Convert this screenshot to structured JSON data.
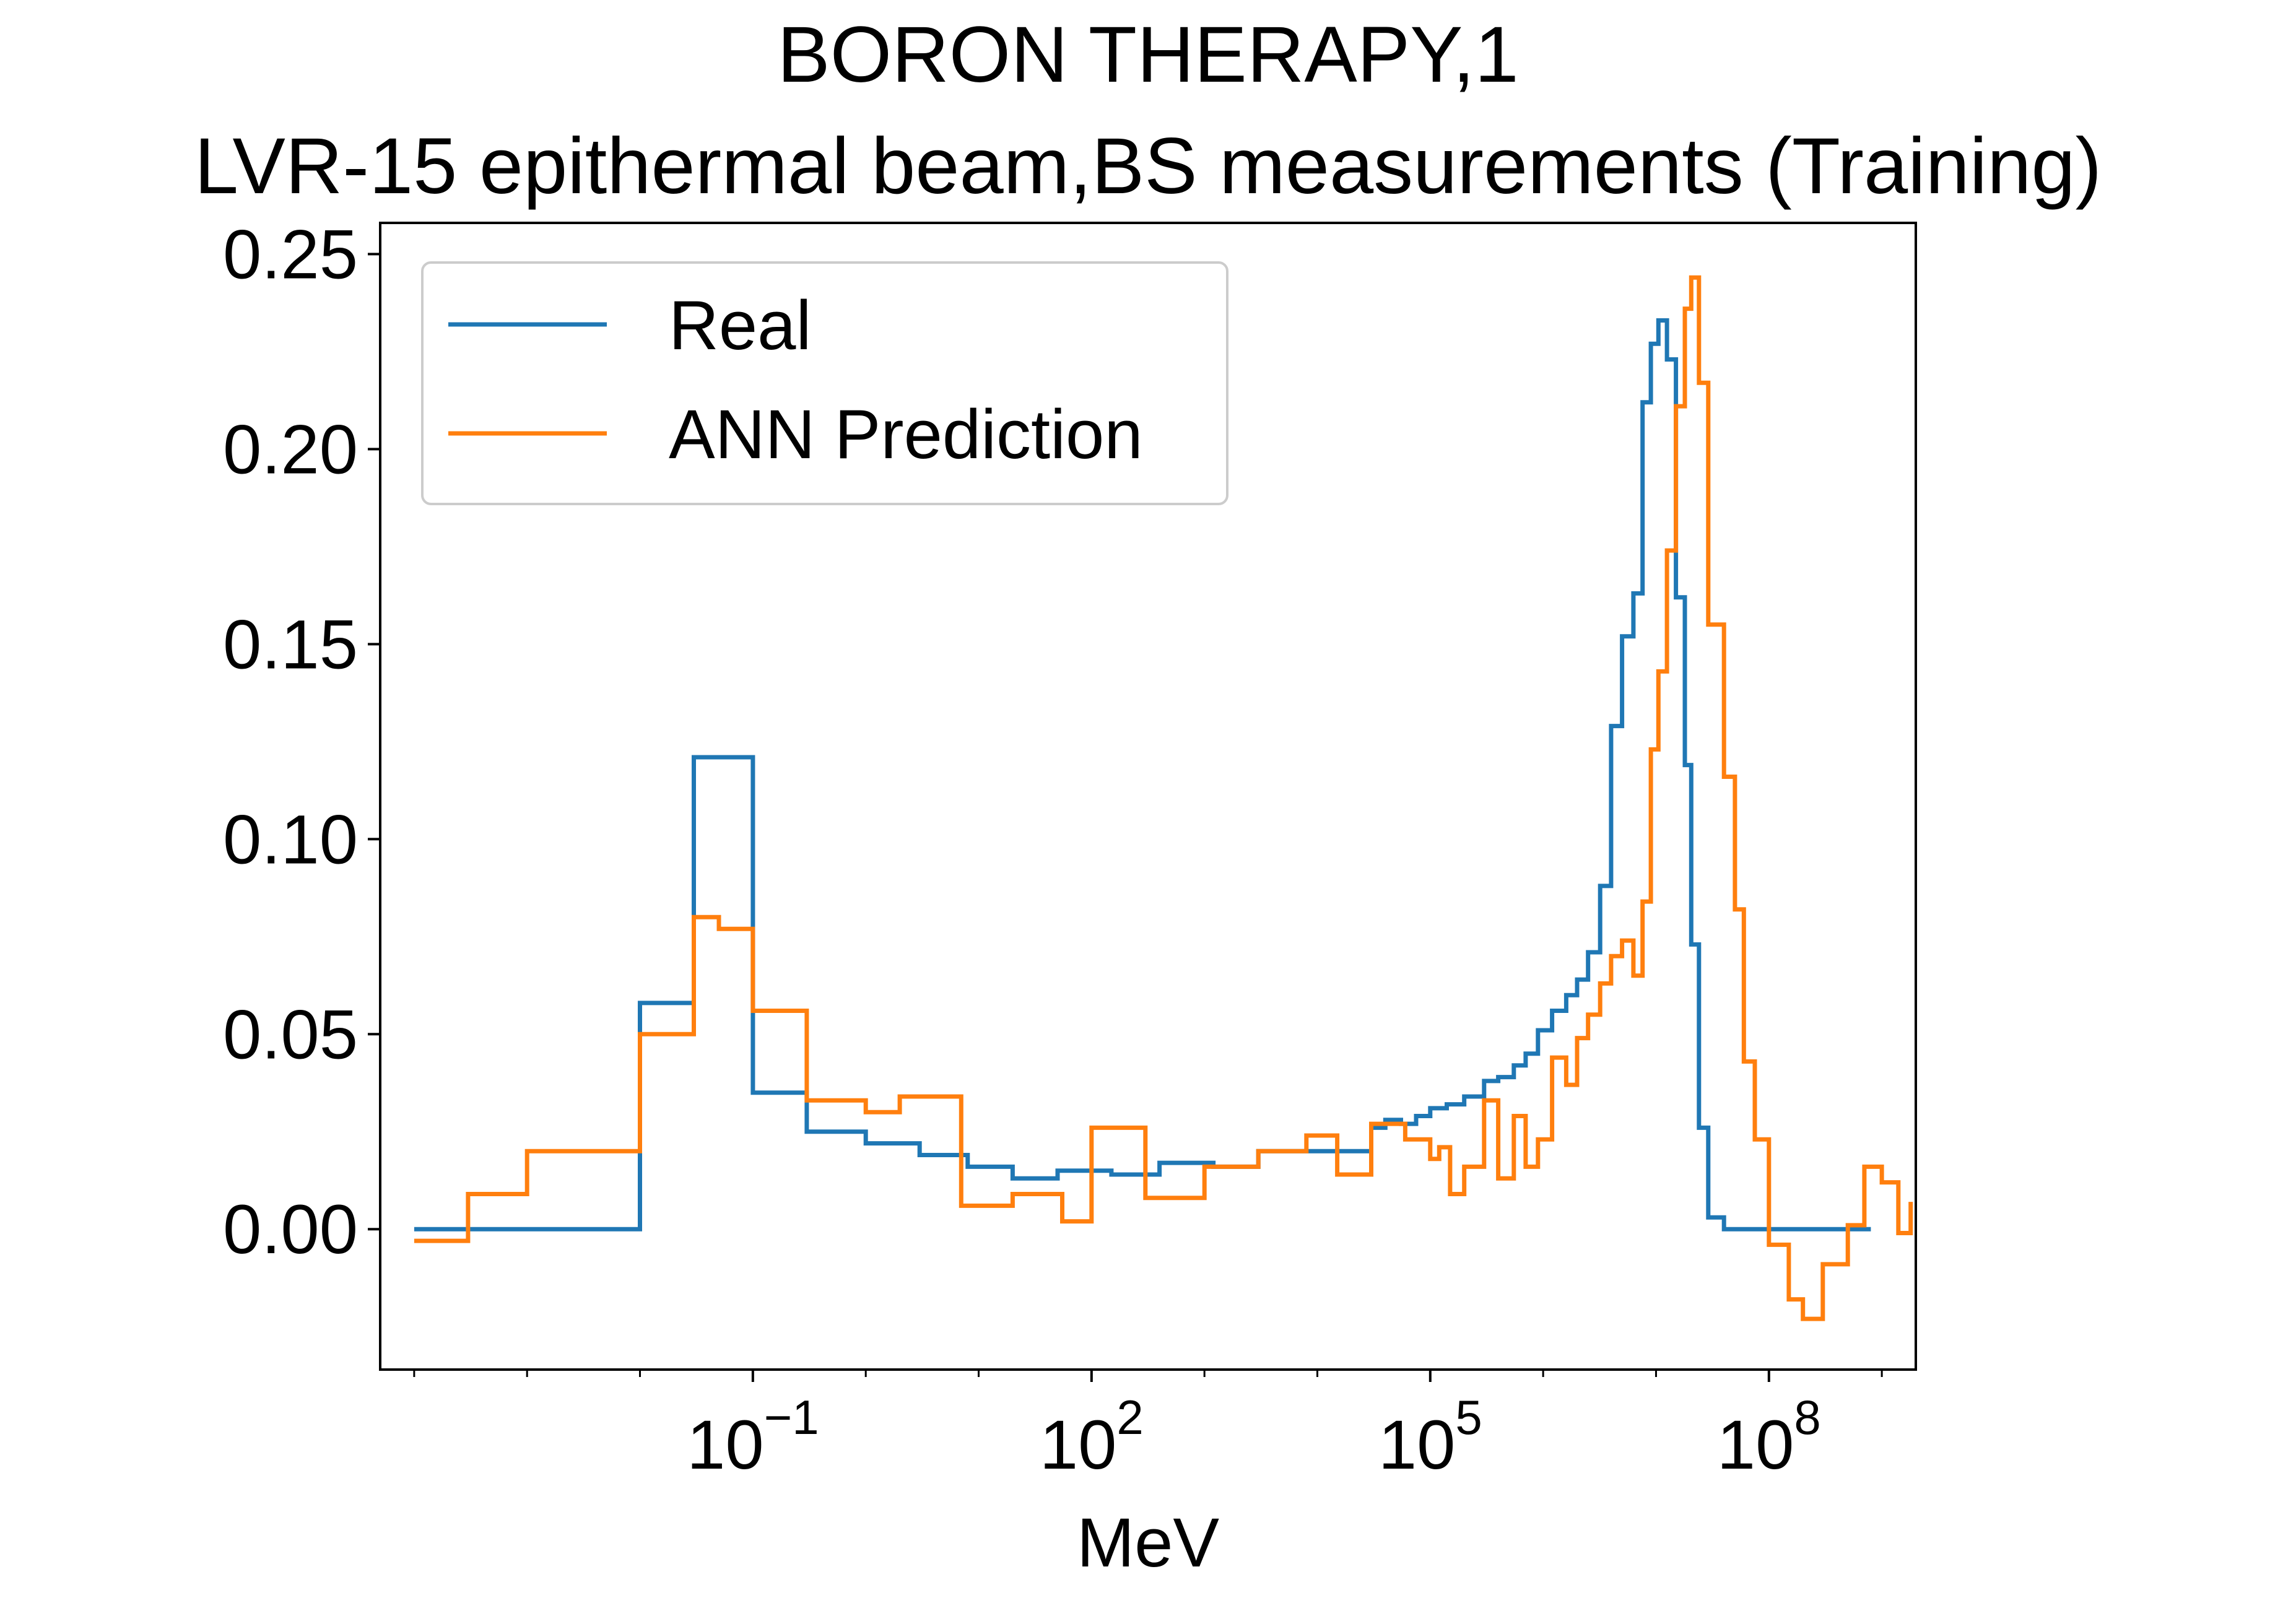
{
  "chart_data": {
    "type": "line",
    "title": [
      "BORON THERAPY,1",
      "LVR-15 epithermal beam,BS measurements (Training)"
    ],
    "xlabel": "MeV",
    "ylabel": "",
    "xscale": "log",
    "xlim": [
      5e-05,
      2000000000
    ],
    "ylim": [
      -0.036,
      0.258
    ],
    "grid": false,
    "legend_position": "top-left",
    "x_ticks": [
      {
        "value": 0.1,
        "base": "10",
        "exp": "−1"
      },
      {
        "value": 100,
        "base": "10",
        "exp": "2"
      },
      {
        "value": 100000,
        "base": "10",
        "exp": "5"
      },
      {
        "value": 100000000,
        "base": "10",
        "exp": "8"
      }
    ],
    "y_ticks": [
      {
        "value": 0.0,
        "label": "0.00"
      },
      {
        "value": 0.05,
        "label": "0.05"
      },
      {
        "value": 0.1,
        "label": "0.10"
      },
      {
        "value": 0.15,
        "label": "0.15"
      },
      {
        "value": 0.2,
        "label": "0.20"
      },
      {
        "value": 0.25,
        "label": "0.25"
      }
    ],
    "series": [
      {
        "name": "Real",
        "color": "#1f77b4",
        "step": "post",
        "points": [
          [
            0.0001,
            0.0
          ],
          [
            0.01,
            0.058
          ],
          [
            0.03,
            0.121
          ],
          [
            0.1,
            0.094
          ],
          [
            0.1,
            0.035
          ],
          [
            0.3,
            0.025
          ],
          [
            1,
            0.022
          ],
          [
            3,
            0.019
          ],
          [
            8,
            0.016
          ],
          [
            20,
            0.013
          ],
          [
            50,
            0.015
          ],
          [
            150,
            0.014
          ],
          [
            400,
            0.017
          ],
          [
            1200,
            0.016
          ],
          [
            3000,
            0.02
          ],
          [
            10000,
            0.02
          ],
          [
            30000,
            0.026
          ],
          [
            40000,
            0.028
          ],
          [
            55000,
            0.027
          ],
          [
            75000,
            0.029
          ],
          [
            100000,
            0.031
          ],
          [
            140000,
            0.032
          ],
          [
            200000,
            0.034
          ],
          [
            300000,
            0.038
          ],
          [
            400000,
            0.039
          ],
          [
            550000,
            0.042
          ],
          [
            700000,
            0.045
          ],
          [
            900000,
            0.051
          ],
          [
            1200000,
            0.056
          ],
          [
            1600000,
            0.06
          ],
          [
            2000000,
            0.064
          ],
          [
            2500000,
            0.071
          ],
          [
            3200000,
            0.088
          ],
          [
            4000000,
            0.129
          ],
          [
            5000000,
            0.152
          ],
          [
            6300000,
            0.163
          ],
          [
            7600000,
            0.212
          ],
          [
            9000000,
            0.227
          ],
          [
            10500000,
            0.233
          ],
          [
            12500000,
            0.223
          ],
          [
            15000000,
            0.162
          ],
          [
            18000000,
            0.119
          ],
          [
            20500000,
            0.073
          ],
          [
            24000000,
            0.026
          ],
          [
            29000000,
            0.003
          ],
          [
            40000000,
            0.0
          ],
          [
            500000000,
            0.0
          ],
          [
            800000000,
            0.0
          ]
        ]
      },
      {
        "name": "ANN Prediction",
        "color": "#ff7f0e",
        "step": "post",
        "points": [
          [
            0.0001,
            -0.003
          ],
          [
            0.0003,
            0.009
          ],
          [
            0.001,
            0.02
          ],
          [
            0.01,
            0.05
          ],
          [
            0.03,
            0.08
          ],
          [
            0.05,
            0.077
          ],
          [
            0.1,
            0.056
          ],
          [
            0.3,
            0.033
          ],
          [
            1,
            0.03
          ],
          [
            2,
            0.034
          ],
          [
            7,
            0.006
          ],
          [
            20,
            0.009
          ],
          [
            55,
            0.002
          ],
          [
            100,
            0.026
          ],
          [
            300,
            0.008
          ],
          [
            1000,
            0.016
          ],
          [
            3000,
            0.02
          ],
          [
            8000,
            0.024
          ],
          [
            15000,
            0.014
          ],
          [
            30000,
            0.027
          ],
          [
            60000,
            0.023
          ],
          [
            100000,
            0.018
          ],
          [
            120000,
            0.021
          ],
          [
            150000,
            0.009
          ],
          [
            200000,
            0.016
          ],
          [
            300000,
            0.033
          ],
          [
            400000,
            0.013
          ],
          [
            550000,
            0.029
          ],
          [
            700000,
            0.016
          ],
          [
            900000,
            0.023
          ],
          [
            1200000,
            0.044
          ],
          [
            1600000,
            0.037
          ],
          [
            2000000,
            0.049
          ],
          [
            2500000,
            0.055
          ],
          [
            3200000,
            0.063
          ],
          [
            4000000,
            0.07
          ],
          [
            5000000,
            0.074
          ],
          [
            6300000,
            0.065
          ],
          [
            7600000,
            0.084
          ],
          [
            9000000,
            0.123
          ],
          [
            10500000,
            0.143
          ],
          [
            12500000,
            0.174
          ],
          [
            15000000,
            0.211
          ],
          [
            18000000,
            0.236
          ],
          [
            20500000,
            0.244
          ],
          [
            24000000,
            0.217
          ],
          [
            29000000,
            0.155
          ],
          [
            40000000,
            0.116
          ],
          [
            50000000,
            0.082
          ],
          [
            60000000,
            0.043
          ],
          [
            75000000,
            0.023
          ],
          [
            100000000,
            -0.004
          ],
          [
            150000000,
            -0.018
          ],
          [
            200000000,
            -0.023
          ],
          [
            300000000,
            -0.009
          ],
          [
            500000000,
            0.001
          ],
          [
            700000000,
            0.016
          ],
          [
            1000000000,
            0.012
          ],
          [
            1400000000,
            -0.001
          ],
          [
            1800000000,
            0.007
          ]
        ]
      }
    ]
  }
}
